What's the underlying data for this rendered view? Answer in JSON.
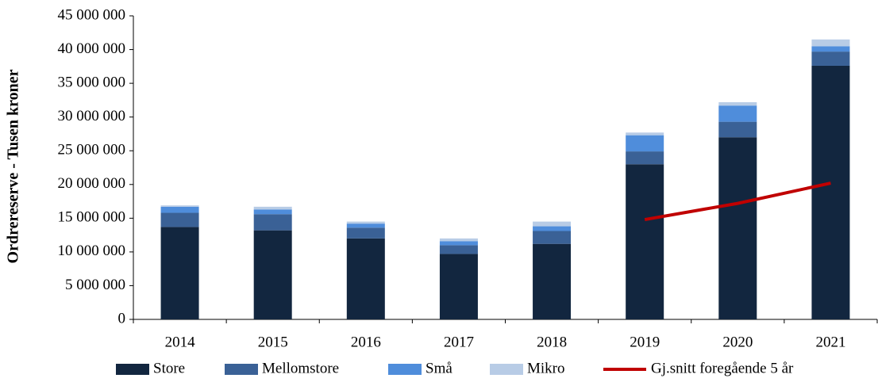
{
  "chart_data": {
    "type": "bar",
    "stacked": true,
    "ylabel": "Ordrereserve  - Tusen kroner",
    "categories": [
      "2014",
      "2015",
      "2016",
      "2017",
      "2018",
      "2019",
      "2020",
      "2021"
    ],
    "series": [
      {
        "name": "Store",
        "color": "#12263f",
        "values": [
          13700000,
          13200000,
          12000000,
          9700000,
          11200000,
          23000000,
          27000000,
          37600000
        ]
      },
      {
        "name": "Mellomstore",
        "color": "#3a6196",
        "values": [
          2100000,
          2400000,
          1600000,
          1300000,
          1900000,
          1900000,
          2300000,
          2100000
        ]
      },
      {
        "name": "Små",
        "color": "#4f8ddb",
        "values": [
          900000,
          700000,
          600000,
          600000,
          700000,
          2400000,
          2400000,
          800000
        ]
      },
      {
        "name": "Mikro",
        "color": "#b8cce6",
        "values": [
          200000,
          400000,
          300000,
          400000,
          700000,
          400000,
          500000,
          1000000
        ]
      },
      {
        "name": "Gj.snitt foregående 5 år",
        "color": "#c00000",
        "type": "line",
        "values": [
          null,
          null,
          null,
          null,
          null,
          14800000,
          17200000,
          20200000
        ]
      }
    ],
    "ylim": [
      0,
      45000000
    ],
    "yticks": [
      0,
      {
        "value": 5000000,
        "label": "5 000 000"
      },
      {
        "value": 10000000,
        "label": "10 000 000"
      },
      {
        "value": 15000000,
        "label": "15 000 000"
      },
      {
        "value": 20000000,
        "label": "20 000 000"
      },
      {
        "value": 25000000,
        "label": "25 000 000"
      },
      {
        "value": 30000000,
        "label": "30 000 000"
      },
      {
        "value": 35000000,
        "label": "35 000 000"
      },
      {
        "value": 40000000,
        "label": "40 000 000"
      },
      {
        "value": 45000000,
        "label": "45 000 000"
      }
    ],
    "grid": false,
    "legend": "bottom"
  }
}
